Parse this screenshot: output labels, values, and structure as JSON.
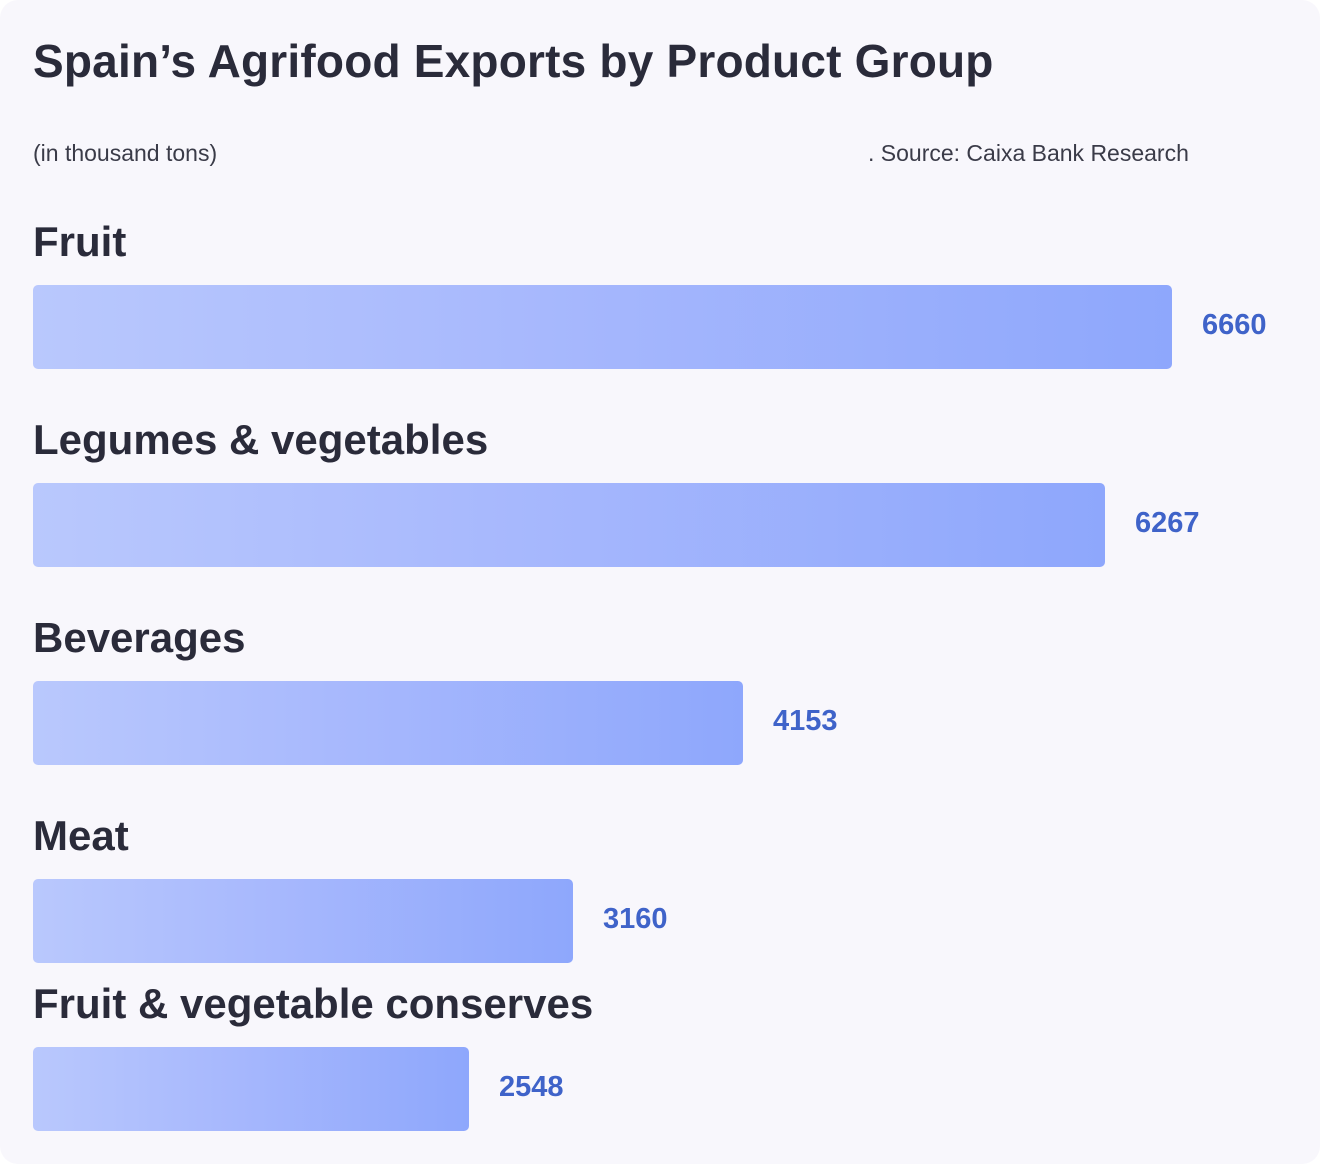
{
  "title": "Spain’s Agrifood Exports by Product Group",
  "subtitle": "(in thousand tons)",
  "source": ". Source: Caixa Bank Research",
  "colors": {
    "background": "#f8f7fc",
    "bar_start": "#b9c8fd",
    "bar_end": "#8ea7fc",
    "value_text": "#3f63c9",
    "label_text": "#2a2b3a"
  },
  "chart_data": {
    "type": "bar",
    "orientation": "horizontal",
    "title": "Spain’s Agrifood Exports by Product Group",
    "subtitle": "(in thousand tons)",
    "categories": [
      "Fruit",
      "Legumes & vegetables",
      "Beverages",
      "Meat",
      "Fruit & vegetable conserves"
    ],
    "values": [
      6660,
      6267,
      4153,
      3160,
      2548
    ],
    "xlim": [
      0,
      6660
    ],
    "grid": false,
    "legend": "none"
  }
}
